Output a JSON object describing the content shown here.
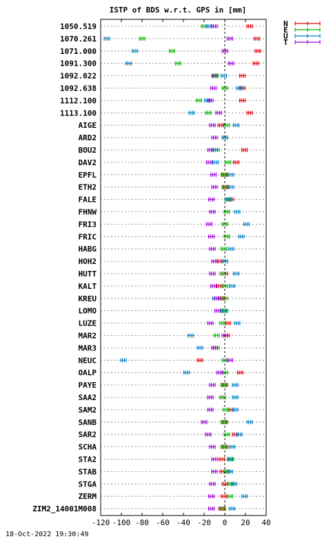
{
  "chart_data": {
    "type": "scatter",
    "title": "ISTP of BDS w.r.t. GPS in [mm]",
    "xlim": [
      -120,
      40
    ],
    "x_ticks": [
      -120,
      -100,
      -80,
      -60,
      -40,
      -20,
      0,
      20,
      40
    ],
    "x_tick_labels": [
      "-120",
      "-100",
      "-80",
      "-60",
      "-40",
      "-20",
      "0",
      "20",
      "40"
    ],
    "grid": "horizontal dotted per station; vertical dashed at 0",
    "legend_position": "top-right",
    "stations": [
      "1050.519",
      "1070.261",
      "1071.000",
      "1091.300",
      "1092.022",
      "1092.638",
      "1112.100",
      "1113.100",
      "AIGE",
      "ARD2",
      "BOU2",
      "DAV2",
      "EPFL",
      "ETH2",
      "FALE",
      "FHNW",
      "FRI3",
      "FRIC",
      "HABG",
      "HOH2",
      "HUTT",
      "KALT",
      "KREU",
      "LOMO",
      "LUZE",
      "MAR2",
      "MAR3",
      "NEUC",
      "OALP",
      "PAYE",
      "SAA2",
      "SAM2",
      "SANB",
      "SAR2",
      "SCHA",
      "STA2",
      "STAB",
      "STGA",
      "ZERM",
      "ZIM2_14001M008"
    ],
    "series": [
      {
        "name": "N",
        "color": "#e4000f",
        "values": [
          24,
          31,
          32,
          30,
          17,
          17,
          17,
          24,
          -4,
          0,
          19,
          11,
          0,
          1,
          6,
          2,
          0,
          2,
          -1,
          -5,
          0,
          -5,
          -3,
          -1,
          3,
          2,
          -10,
          -24,
          15,
          0,
          -2,
          6,
          0,
          10,
          0,
          -3,
          -2,
          0,
          -1,
          -3
        ]
      },
      {
        "name": "E",
        "color": "#00b400",
        "values": [
          -20,
          -80,
          -51,
          -45,
          -9,
          0,
          -25,
          -16,
          2,
          0,
          -8,
          3,
          -1,
          0,
          4,
          2,
          0,
          2,
          -1,
          0,
          -2,
          0,
          0,
          -1,
          -2,
          -8,
          -8,
          0,
          0,
          -1,
          -2,
          1,
          -1,
          2,
          -1,
          6,
          2,
          6,
          5,
          -2
        ]
      },
      {
        "name": "U",
        "color": "#0080c8",
        "values": [
          -15,
          -114,
          -87,
          -93,
          -1,
          14,
          -17,
          -32,
          11,
          0,
          -10,
          -9,
          6,
          6,
          3,
          12,
          21,
          16,
          6,
          0,
          11,
          7,
          -9,
          0,
          12,
          -33,
          -24,
          -98,
          -37,
          10,
          10,
          10,
          24,
          14,
          7,
          5,
          5,
          9,
          19,
          7
        ]
      },
      {
        "name": "T",
        "color": "#a000dc",
        "values": [
          -10,
          5,
          0,
          6,
          -10,
          -11,
          -14,
          -6,
          -12,
          -10,
          -14,
          -15,
          -11,
          -10,
          -13,
          -12,
          -15,
          -13,
          -12,
          -10,
          -12,
          -11,
          -7,
          -7,
          -14,
          0,
          -10,
          5,
          -5,
          -12,
          -14,
          -14,
          -20,
          -16,
          -12,
          -10,
          -10,
          -12,
          -13,
          -13
        ]
      }
    ]
  },
  "footer": {
    "timestamp": "18-Oct-2022 19:30:49"
  }
}
